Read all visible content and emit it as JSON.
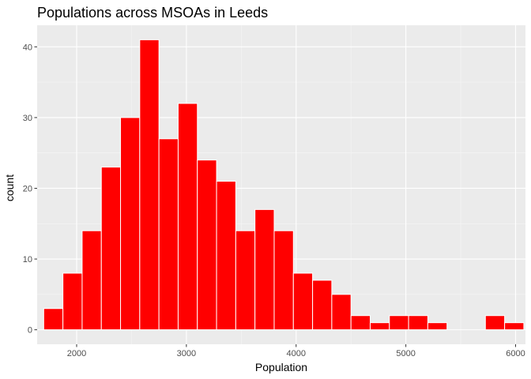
{
  "chart_data": {
    "type": "bar",
    "title": "Populations across MSOAs in Leeds",
    "xlabel": "Population",
    "ylabel": "count",
    "xlim": [
      1640,
      6090
    ],
    "ylim": [
      -2.05,
      43.05
    ],
    "xticks": [
      2000,
      3000,
      4000,
      5000,
      6000
    ],
    "yticks": [
      0,
      10,
      20,
      30,
      40
    ],
    "grid": true,
    "bins": [
      {
        "x0": 1700,
        "x1": 1875,
        "count": 3
      },
      {
        "x0": 1875,
        "x1": 2050,
        "count": 8
      },
      {
        "x0": 2050,
        "x1": 2225,
        "count": 14
      },
      {
        "x0": 2225,
        "x1": 2400,
        "count": 23
      },
      {
        "x0": 2400,
        "x1": 2575,
        "count": 30
      },
      {
        "x0": 2575,
        "x1": 2750,
        "count": 41
      },
      {
        "x0": 2750,
        "x1": 2925,
        "count": 27
      },
      {
        "x0": 2925,
        "x1": 3100,
        "count": 32
      },
      {
        "x0": 3100,
        "x1": 3275,
        "count": 24
      },
      {
        "x0": 3275,
        "x1": 3450,
        "count": 21
      },
      {
        "x0": 3450,
        "x1": 3625,
        "count": 14
      },
      {
        "x0": 3625,
        "x1": 3800,
        "count": 17
      },
      {
        "x0": 3800,
        "x1": 3975,
        "count": 14
      },
      {
        "x0": 3975,
        "x1": 4150,
        "count": 8
      },
      {
        "x0": 4150,
        "x1": 4325,
        "count": 7
      },
      {
        "x0": 4325,
        "x1": 4500,
        "count": 5
      },
      {
        "x0": 4500,
        "x1": 4675,
        "count": 2
      },
      {
        "x0": 4675,
        "x1": 4850,
        "count": 1
      },
      {
        "x0": 4850,
        "x1": 5025,
        "count": 2
      },
      {
        "x0": 5025,
        "x1": 5200,
        "count": 2
      },
      {
        "x0": 5200,
        "x1": 5375,
        "count": 1
      },
      {
        "x0": 5375,
        "x1": 5550,
        "count": 0
      },
      {
        "x0": 5550,
        "x1": 5725,
        "count": 0
      },
      {
        "x0": 5725,
        "x1": 5900,
        "count": 2
      },
      {
        "x0": 5900,
        "x1": 6075,
        "count": 1
      }
    ],
    "colors": {
      "fill": "#ff0000",
      "outline": "#ffffff",
      "panel_background": "#ebebeb",
      "grid_major": "#ffffff",
      "grid_minor": "#f5f5f5",
      "tick_text": "#4d4d4d",
      "tick_mark": "#333333"
    }
  }
}
